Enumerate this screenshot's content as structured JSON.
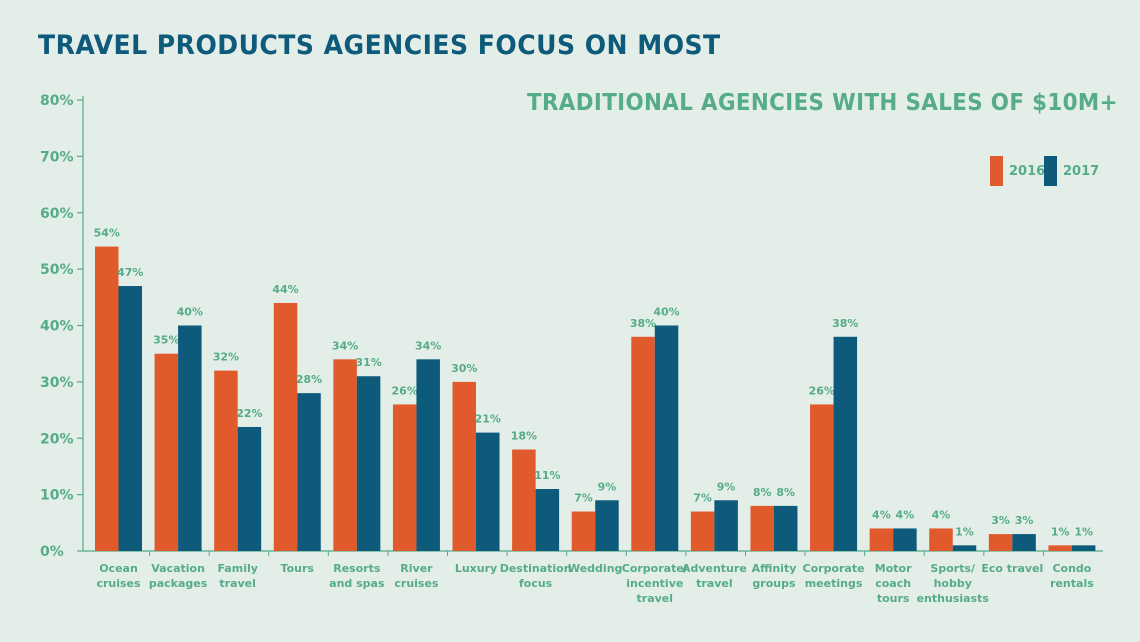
{
  "chart_data": {
    "type": "bar",
    "title": "TRAVEL PRODUCTS AGENCIES FOCUS ON MOST",
    "subtitle": "TRADITIONAL AGENCIES WITH SALES OF $10M+",
    "ylim": [
      0,
      80
    ],
    "yticks": [
      0,
      10,
      20,
      30,
      40,
      50,
      60,
      70,
      80
    ],
    "ytick_labels": [
      "0%",
      "10%",
      "20%",
      "30%",
      "40%",
      "50%",
      "60%",
      "70%",
      "80%"
    ],
    "categories": [
      [
        "Ocean",
        "cruises"
      ],
      [
        "Vacation",
        "packages"
      ],
      [
        "Family",
        "travel"
      ],
      [
        "Tours"
      ],
      [
        "Resorts",
        "and spas"
      ],
      [
        "River",
        "cruises"
      ],
      [
        "Luxury"
      ],
      [
        "Destination",
        "focus"
      ],
      [
        "Wedding"
      ],
      [
        "Corporate/",
        "incentive",
        "travel"
      ],
      [
        "Adventure",
        "travel"
      ],
      [
        "Affinity",
        "groups"
      ],
      [
        "Corporate",
        "meetings"
      ],
      [
        "Motor",
        "coach",
        "tours"
      ],
      [
        "Sports/",
        "hobby",
        "enthusiasts"
      ],
      [
        "Eco travel"
      ],
      [
        "Condo",
        "rentals"
      ]
    ],
    "series": [
      {
        "name": "2016",
        "color": "#e05a2b",
        "values": [
          54,
          35,
          32,
          44,
          34,
          26,
          30,
          18,
          7,
          38,
          7,
          8,
          26,
          4,
          4,
          3,
          1
        ],
        "labels": [
          "54%",
          "35%",
          "32%",
          "44%",
          "34%",
          "26%",
          "30%",
          "18%",
          "7%",
          "38%",
          "7%",
          "8%",
          "26%",
          "4%",
          "4%",
          "3%",
          "1%"
        ]
      },
      {
        "name": "2017",
        "color": "#0e5a7a",
        "values": [
          47,
          40,
          22,
          28,
          31,
          34,
          21,
          11,
          9,
          40,
          9,
          8,
          38,
          4,
          1,
          3,
          1
        ],
        "labels": [
          "47%",
          "40%",
          "22%",
          "28%",
          "31%",
          "34%",
          "21%",
          "11%",
          "9%",
          "40%",
          "9%",
          "8%",
          "38%",
          "4%",
          "1%",
          "3%",
          "1%"
        ]
      }
    ],
    "legend": "top-right"
  }
}
